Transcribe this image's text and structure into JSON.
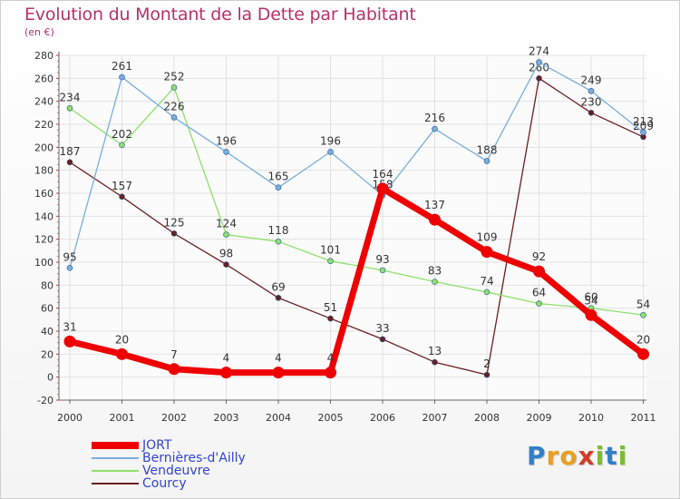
{
  "header": {
    "title": "Evolution du Montant de la Dette par Habitant",
    "unit": "(en €)"
  },
  "brand": {
    "letters": [
      "P",
      "r",
      "o",
      "x",
      "i",
      "t",
      "i"
    ],
    "colors": [
      "#2f80c8",
      "#e8a020",
      "#e8a020",
      "#d23c2c",
      "#7cbd2e",
      "#2f80c8",
      "#7cbd2e"
    ]
  },
  "chart_data": {
    "type": "line",
    "title": "Evolution du Montant de la Dette par Habitant",
    "subtitle": "(en €)",
    "xlabel": "",
    "ylabel": "",
    "categories": [
      "2000",
      "2001",
      "2002",
      "2003",
      "2004",
      "2005",
      "2006",
      "2007",
      "2008",
      "2009",
      "2010",
      "2011"
    ],
    "ylim": [
      -20,
      280
    ],
    "ymajor_step": 20,
    "legend_position": "bottom-left",
    "series": [
      {
        "name": "Courcy",
        "color": "#6b1f1f",
        "width": 1.3,
        "values": [
          187,
          157,
          125,
          98,
          69,
          51,
          33,
          13,
          2,
          260,
          230,
          209
        ]
      },
      {
        "name": "Vendeuvre",
        "color": "#8ee06a",
        "width": 1.3,
        "values": [
          234,
          202,
          252,
          124,
          118,
          101,
          93,
          83,
          74,
          64,
          60,
          54
        ]
      },
      {
        "name": "Bernières-d'Ailly",
        "color": "#7aaedc",
        "width": 1.3,
        "values": [
          95,
          261,
          226,
          196,
          165,
          196,
          158,
          216,
          188,
          274,
          249,
          213
        ]
      },
      {
        "name": "JORT",
        "color": "#ee0000",
        "width": 7,
        "values": [
          31,
          20,
          7,
          4,
          4,
          4,
          164,
          137,
          109,
          92,
          54,
          20
        ]
      }
    ],
    "legend_order": [
      "JORT",
      "Bernières-d'Ailly",
      "Vendeuvre",
      "Courcy"
    ]
  }
}
